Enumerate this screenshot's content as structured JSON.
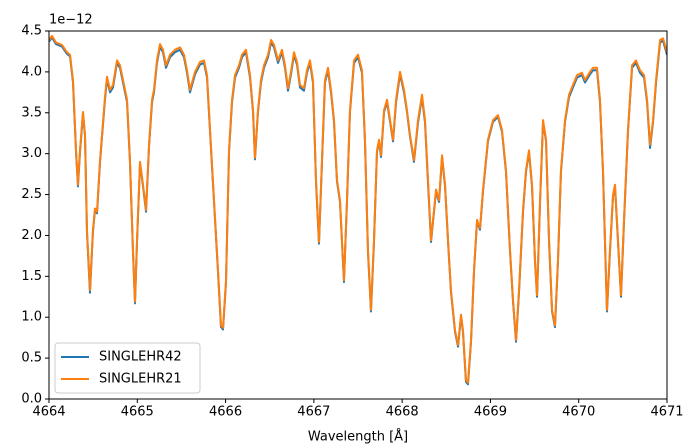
{
  "chart_data": {
    "type": "line",
    "y_offset_label": "1e−12",
    "xlabel": "Wavelength [Å]",
    "xlim": [
      4664,
      4671
    ],
    "xticks": [
      4664,
      4665,
      4666,
      4667,
      4668,
      4669,
      4670,
      4671
    ],
    "ylim": [
      0,
      4.5
    ],
    "yticks": [
      {
        "value": 0,
        "label": "0.0"
      },
      0.5,
      {
        "value": 1,
        "label": "1.0"
      },
      1.5,
      {
        "value": 2,
        "label": "2.0"
      },
      2.5,
      {
        "value": 3,
        "label": "3.0"
      },
      3.5,
      {
        "value": 4,
        "label": "4.0"
      },
      4.5
    ],
    "legend": "lower left",
    "x": [
      4664.0,
      4664.034,
      4664.079,
      4664.147,
      4664.204,
      4664.238,
      4664.272,
      4664.306,
      4664.328,
      4664.351,
      4664.385,
      4664.408,
      4664.43,
      4664.464,
      4664.498,
      4664.521,
      4664.544,
      4664.578,
      4664.634,
      4664.657,
      4664.691,
      4664.725,
      4664.77,
      4664.804,
      4664.85,
      4664.884,
      4664.917,
      4664.951,
      4664.974,
      4664.997,
      4665.031,
      4665.065,
      4665.099,
      4665.133,
      4665.167,
      4665.189,
      4665.223,
      4665.257,
      4665.291,
      4665.325,
      4665.371,
      4665.427,
      4665.484,
      4665.529,
      4665.563,
      4665.597,
      4665.654,
      4665.71,
      4665.756,
      4665.79,
      4665.824,
      4665.869,
      4665.914,
      4665.948,
      4665.971,
      4666.005,
      4666.039,
      4666.073,
      4666.107,
      4666.152,
      4666.186,
      4666.231,
      4666.277,
      4666.311,
      4666.333,
      4666.367,
      4666.401,
      4666.435,
      4666.481,
      4666.515,
      4666.549,
      4666.594,
      4666.639,
      4666.673,
      4666.707,
      4666.741,
      4666.775,
      4666.809,
      4666.843,
      4666.888,
      4666.922,
      4666.956,
      4666.99,
      4667.024,
      4667.058,
      4667.092,
      4667.126,
      4667.16,
      4667.194,
      4667.228,
      4667.262,
      4667.296,
      4667.341,
      4667.375,
      4667.409,
      4667.455,
      4667.5,
      4667.545,
      4667.579,
      4667.613,
      4667.647,
      4667.681,
      4667.715,
      4667.738,
      4667.761,
      4667.795,
      4667.829,
      4667.863,
      4667.897,
      4667.931,
      4667.976,
      4668.021,
      4668.055,
      4668.089,
      4668.134,
      4668.18,
      4668.225,
      4668.259,
      4668.293,
      4668.327,
      4668.35,
      4668.384,
      4668.418,
      4668.452,
      4668.486,
      4668.52,
      4668.553,
      4668.599,
      4668.633,
      4668.667,
      4668.689,
      4668.723,
      4668.746,
      4668.78,
      4668.814,
      4668.848,
      4668.882,
      4668.916,
      4668.972,
      4669.029,
      4669.086,
      4669.131,
      4669.176,
      4669.222,
      4669.256,
      4669.29,
      4669.324,
      4669.369,
      4669.403,
      4669.437,
      4669.471,
      4669.505,
      4669.528,
      4669.562,
      4669.596,
      4669.63,
      4669.664,
      4669.698,
      4669.731,
      4669.765,
      4669.799,
      4669.845,
      4669.89,
      4669.935,
      4669.981,
      4670.037,
      4670.071,
      4670.128,
      4670.162,
      4670.207,
      4670.241,
      4670.275,
      4670.32,
      4670.354,
      4670.388,
      4670.411,
      4670.445,
      4670.479,
      4670.513,
      4670.558,
      4670.604,
      4670.649,
      4670.694,
      4670.74,
      4670.774,
      4670.808,
      4670.842,
      4670.876,
      4670.921,
      4670.955,
      4671.0
    ],
    "series": [
      {
        "name": "SINGLEHR42",
        "color": "#1f77b4",
        "values": [
          4.37,
          4.42,
          4.34,
          4.31,
          4.22,
          4.19,
          3.87,
          3.02,
          2.6,
          3.02,
          3.49,
          3.21,
          2.05,
          1.3,
          2.05,
          2.31,
          2.27,
          2.9,
          3.66,
          3.91,
          3.75,
          3.81,
          4.11,
          4.05,
          3.81,
          3.63,
          2.9,
          1.81,
          1.17,
          1.92,
          2.88,
          2.6,
          2.29,
          3.09,
          3.63,
          3.75,
          4.11,
          4.31,
          4.24,
          4.05,
          4.18,
          4.24,
          4.27,
          4.18,
          3.99,
          3.75,
          3.97,
          4.09,
          4.11,
          3.93,
          3.27,
          2.41,
          1.56,
          0.88,
          0.85,
          1.43,
          3.02,
          3.63,
          3.93,
          4.05,
          4.18,
          4.24,
          3.93,
          3.51,
          2.93,
          3.51,
          3.87,
          4.05,
          4.18,
          4.36,
          4.3,
          4.11,
          4.24,
          4.05,
          3.77,
          3.97,
          4.21,
          4.09,
          3.81,
          3.77,
          3.99,
          4.11,
          3.87,
          2.66,
          1.9,
          2.9,
          3.87,
          4.02,
          3.75,
          3.39,
          2.66,
          2.41,
          1.43,
          2.41,
          3.51,
          4.11,
          4.18,
          3.99,
          3.15,
          1.8,
          1.07,
          1.92,
          3.02,
          3.15,
          2.96,
          3.51,
          3.63,
          3.39,
          3.15,
          3.63,
          3.97,
          3.75,
          3.51,
          3.21,
          2.9,
          3.38,
          3.69,
          3.38,
          2.64,
          1.92,
          2.17,
          2.54,
          2.41,
          2.96,
          2.6,
          1.92,
          1.31,
          0.82,
          0.64,
          1.01,
          0.82,
          0.21,
          0.18,
          0.7,
          1.56,
          2.17,
          2.07,
          2.54,
          3.15,
          3.39,
          3.45,
          3.27,
          2.78,
          1.8,
          1.19,
          0.7,
          1.31,
          2.29,
          2.78,
          3.02,
          2.6,
          1.68,
          1.25,
          2.41,
          3.39,
          3.15,
          1.92,
          1.07,
          0.88,
          1.68,
          2.78,
          3.39,
          3.69,
          3.81,
          3.93,
          3.96,
          3.87,
          3.97,
          4.02,
          4.02,
          3.63,
          2.78,
          1.07,
          1.8,
          2.47,
          2.6,
          1.92,
          1.25,
          2.17,
          3.27,
          4.05,
          4.11,
          3.99,
          3.93,
          3.63,
          3.07,
          3.39,
          3.87,
          4.36,
          4.38,
          4.21
        ]
      },
      {
        "name": "SINGLEHR21",
        "color": "#ff7f0e",
        "values": [
          4.39,
          4.44,
          4.36,
          4.33,
          4.24,
          4.21,
          3.9,
          3.04,
          2.62,
          3.04,
          3.51,
          3.23,
          2.07,
          1.33,
          2.07,
          2.33,
          2.29,
          2.92,
          3.69,
          3.94,
          3.78,
          3.84,
          4.14,
          4.08,
          3.84,
          3.66,
          2.92,
          1.83,
          1.19,
          1.94,
          2.9,
          2.62,
          2.31,
          3.11,
          3.66,
          3.78,
          4.14,
          4.34,
          4.27,
          4.08,
          4.21,
          4.27,
          4.3,
          4.21,
          4.02,
          3.78,
          4.0,
          4.12,
          4.14,
          3.96,
          3.29,
          2.43,
          1.58,
          0.9,
          0.87,
          1.45,
          3.04,
          3.66,
          3.96,
          4.08,
          4.21,
          4.27,
          3.96,
          3.53,
          2.95,
          3.53,
          3.9,
          4.08,
          4.21,
          4.39,
          4.33,
          4.14,
          4.27,
          4.08,
          3.8,
          4.0,
          4.24,
          4.12,
          3.84,
          3.8,
          4.02,
          4.14,
          3.9,
          2.68,
          1.92,
          2.92,
          3.9,
          4.05,
          3.78,
          3.41,
          2.68,
          2.43,
          1.45,
          2.43,
          3.53,
          4.14,
          4.21,
          4.02,
          3.17,
          1.82,
          1.09,
          1.94,
          3.04,
          3.17,
          2.98,
          3.53,
          3.66,
          3.41,
          3.17,
          3.66,
          4.0,
          3.78,
          3.53,
          3.23,
          2.92,
          3.41,
          3.72,
          3.41,
          2.68,
          1.94,
          2.19,
          2.56,
          2.43,
          2.98,
          2.62,
          1.94,
          1.33,
          0.84,
          0.66,
          1.03,
          0.84,
          0.23,
          0.2,
          0.72,
          1.58,
          2.19,
          2.09,
          2.56,
          3.17,
          3.41,
          3.47,
          3.29,
          2.8,
          1.82,
          1.21,
          0.72,
          1.33,
          2.31,
          2.8,
          3.04,
          2.62,
          1.7,
          1.27,
          2.43,
          3.41,
          3.17,
          1.94,
          1.09,
          0.9,
          1.7,
          2.8,
          3.41,
          3.72,
          3.84,
          3.96,
          3.99,
          3.9,
          4.0,
          4.05,
          4.05,
          3.66,
          2.8,
          1.09,
          1.82,
          2.49,
          2.62,
          1.94,
          1.27,
          2.19,
          3.29,
          4.08,
          4.14,
          4.02,
          3.96,
          3.66,
          3.11,
          3.41,
          3.9,
          4.39,
          4.41,
          4.24
        ]
      }
    ]
  }
}
